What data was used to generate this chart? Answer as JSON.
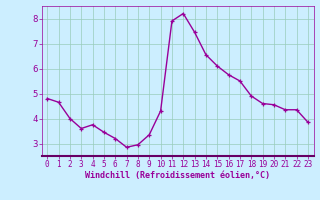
{
  "x": [
    0,
    1,
    2,
    3,
    4,
    5,
    6,
    7,
    8,
    9,
    10,
    11,
    12,
    13,
    14,
    15,
    16,
    17,
    18,
    19,
    20,
    21,
    22,
    23
  ],
  "y": [
    4.8,
    4.65,
    4.0,
    3.6,
    3.75,
    3.45,
    3.2,
    2.85,
    2.95,
    3.35,
    4.3,
    7.9,
    8.2,
    7.45,
    6.55,
    6.1,
    5.75,
    5.5,
    4.9,
    4.6,
    4.55,
    4.35,
    4.35,
    3.85
  ],
  "line_color": "#990099",
  "marker": "+",
  "marker_color": "#990099",
  "bg_color": "#cceeff",
  "grid_color": "#99ccbb",
  "xlabel": "Windchill (Refroidissement éolien,°C)",
  "xlabel_color": "#990099",
  "tick_color": "#990099",
  "ylim": [
    2.5,
    8.5
  ],
  "xlim": [
    -0.5,
    23.5
  ],
  "yticks": [
    3,
    4,
    5,
    6,
    7,
    8
  ],
  "xticks": [
    0,
    1,
    2,
    3,
    4,
    5,
    6,
    7,
    8,
    9,
    10,
    11,
    12,
    13,
    14,
    15,
    16,
    17,
    18,
    19,
    20,
    21,
    22,
    23
  ],
  "spine_color": "#990099",
  "spine_bottom_color": "#660066"
}
